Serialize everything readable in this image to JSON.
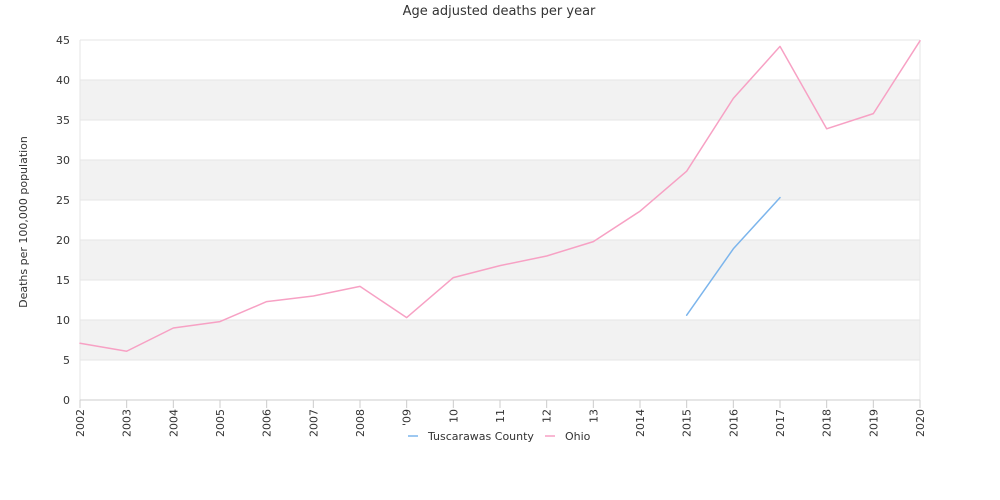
{
  "chart_data": {
    "type": "line",
    "title": "Age adjusted deaths per year",
    "xlabel": "",
    "ylabel": "Deaths per 100,000 population",
    "categories": [
      "2002",
      "2003",
      "2004",
      "2005",
      "2006",
      "2007",
      "2008",
      "2009",
      "2010",
      "2011",
      "2012",
      "2013",
      "2014",
      "2015",
      "2016",
      "2017",
      "2018",
      "2019",
      "2020"
    ],
    "x_tick_labels": [
      "2002",
      "2003",
      "2004",
      "2005",
      "2006",
      "2007",
      "2008",
      "'09",
      "10",
      "11",
      "12",
      "13",
      "2014",
      "2015",
      "2016",
      "2017",
      "2018",
      "2019",
      "2020"
    ],
    "ylim": [
      0,
      45
    ],
    "yticks": [
      0,
      5,
      10,
      15,
      20,
      25,
      30,
      35,
      40,
      45
    ],
    "grid": true,
    "legend_position": "bottom",
    "series": [
      {
        "name": "Tuscarawas County",
        "color": "#7cb5ec",
        "values": [
          null,
          null,
          null,
          null,
          null,
          null,
          null,
          null,
          null,
          null,
          null,
          null,
          null,
          10.6,
          18.9,
          25.3,
          null,
          null,
          null
        ]
      },
      {
        "name": "Ohio",
        "color": "#f7a1c4",
        "values": [
          7.1,
          6.1,
          9.0,
          9.8,
          12.3,
          13.0,
          14.2,
          10.3,
          15.3,
          16.8,
          18.0,
          19.8,
          23.6,
          28.6,
          37.7,
          44.2,
          33.9,
          35.8,
          44.9
        ]
      }
    ]
  }
}
